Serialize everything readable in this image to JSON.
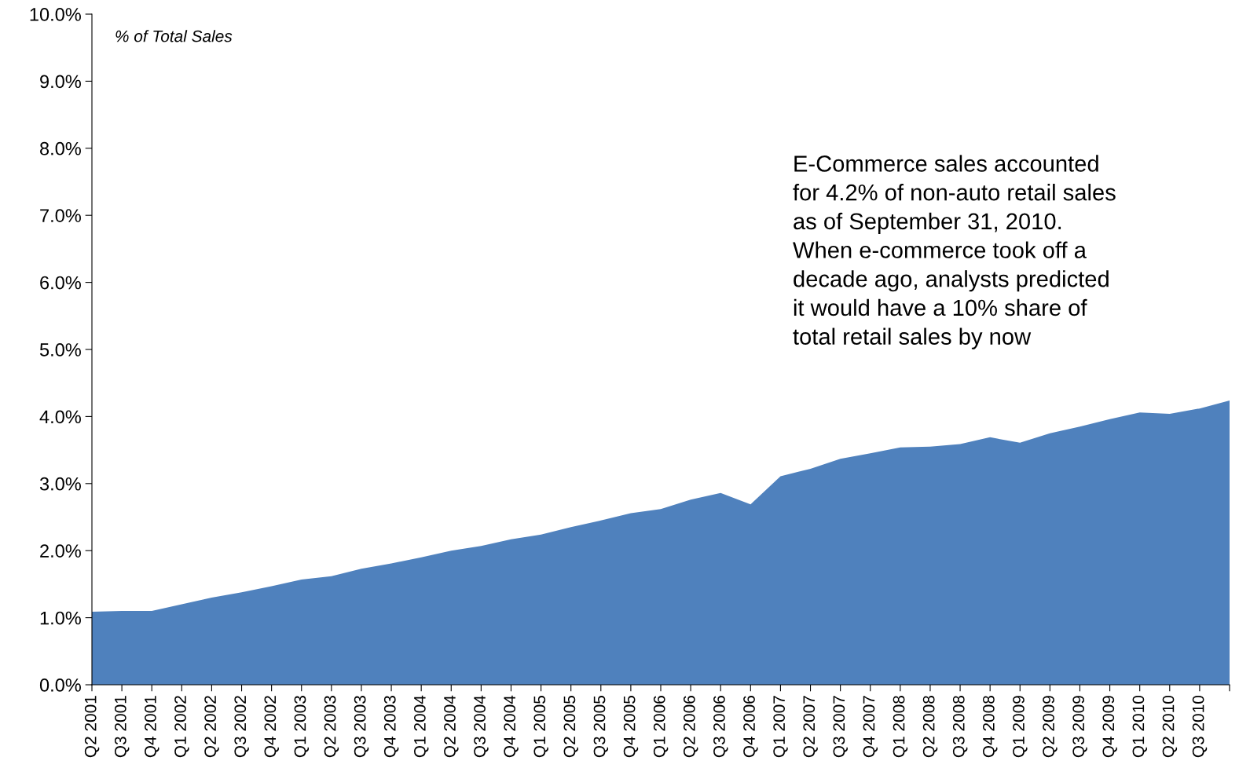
{
  "chart_data": {
    "type": "area",
    "ylabel": "% of Total Sales",
    "categories": [
      "Q2 2001",
      "Q3 2001",
      "Q4 2001",
      "Q1 2002",
      "Q2 2002",
      "Q3 2002",
      "Q4 2002",
      "Q1 2003",
      "Q2 2003",
      "Q3 2003",
      "Q4 2003",
      "Q1 2004",
      "Q2 2004",
      "Q3 2004",
      "Q4 2004",
      "Q1 2005",
      "Q2 2005",
      "Q3 2005",
      "Q4 2005",
      "Q1 2006",
      "Q2 2006",
      "Q3 2006",
      "Q4 2006",
      "Q1 2007",
      "Q2 2007",
      "Q3 2007",
      "Q4 2007",
      "Q1 2008",
      "Q2 2008",
      "Q3 2008",
      "Q4 2008",
      "Q1 2009",
      "Q2 2009",
      "Q3 2009",
      "Q4 2009",
      "Q1 2010",
      "Q2 2010",
      "Q3 2010",
      null
    ],
    "series": [
      {
        "color": "#4f81bd",
        "values": [
          1.09,
          1.1,
          1.1,
          1.2,
          1.3,
          1.38,
          1.47,
          1.57,
          1.62,
          1.73,
          1.81,
          1.9,
          2.0,
          2.07,
          2.17,
          2.24,
          2.35,
          2.45,
          2.56,
          2.62,
          2.76,
          2.86,
          2.69,
          3.11,
          3.22,
          3.37,
          3.45,
          3.54,
          3.55,
          3.59,
          3.69,
          3.61,
          3.75,
          3.85,
          3.96,
          4.06,
          4.04,
          4.12,
          4.24
        ]
      }
    ],
    "ylim": [
      0,
      10
    ],
    "yticks": [
      {
        "value": 0,
        "label": "0.0%"
      },
      {
        "value": 1,
        "label": "1.0%"
      },
      {
        "value": 2,
        "label": "2.0%"
      },
      {
        "value": 3,
        "label": "3.0%"
      },
      {
        "value": 4,
        "label": "4.0%"
      },
      {
        "value": 5,
        "label": "5.0%"
      },
      {
        "value": 6,
        "label": "6.0%"
      },
      {
        "value": 7,
        "label": "7.0%"
      },
      {
        "value": 8,
        "label": "8.0%"
      },
      {
        "value": 9,
        "label": "9.0%"
      },
      {
        "value": 10,
        "label": "10.0%"
      }
    ],
    "annotations": [
      "E-Commerce sales accounted\nfor 4.2% of non-auto retail sales\nas of September 31, 2010.\nWhen e-commerce took off a\ndecade ago, analysts predicted\nit would have a 10% share of\ntotal retail sales by now"
    ],
    "grid": false,
    "legend": false
  }
}
